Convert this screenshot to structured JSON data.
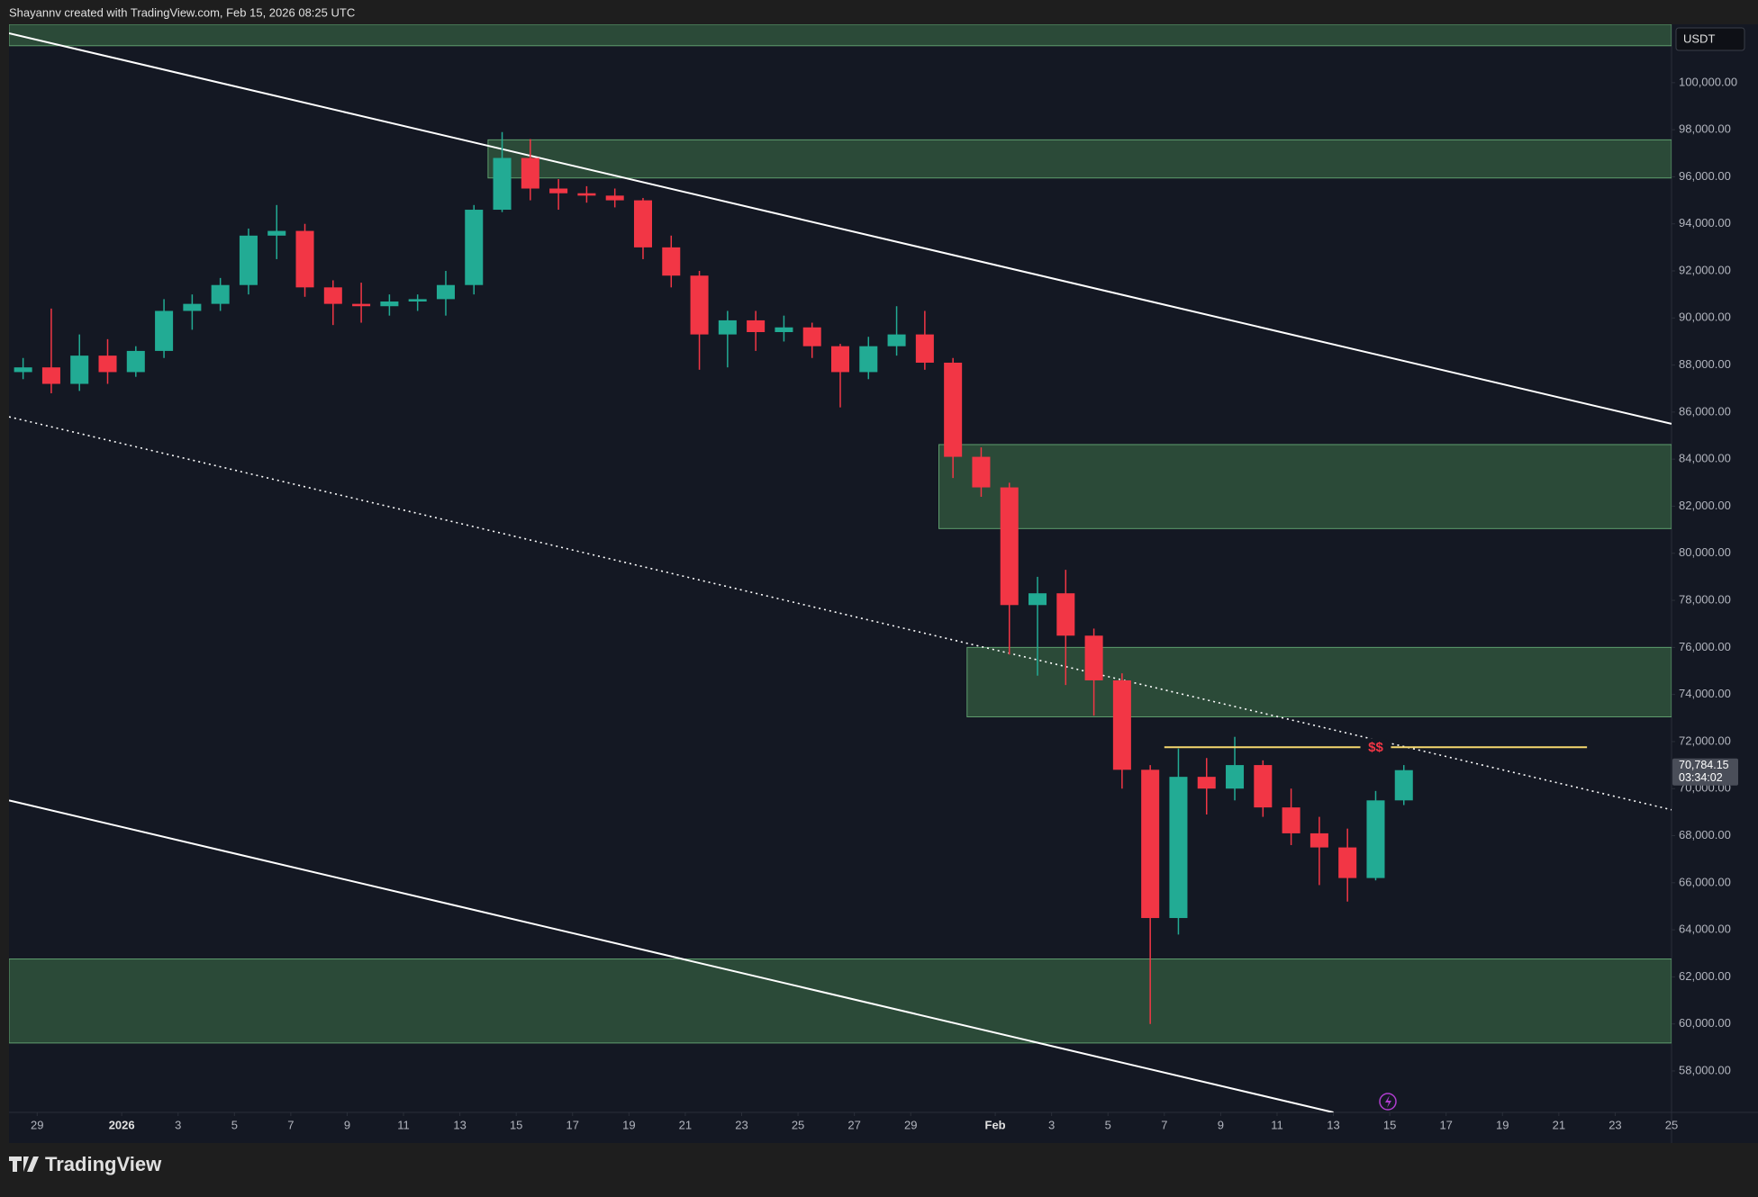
{
  "chart_data": {
    "type": "candlestick",
    "title": "Shayannv created with TradingView.com, Feb 15, 2026 08:25 UTC",
    "currency": "USDT",
    "watermark": "TradingView",
    "up_color": "#22ab94",
    "down_color": "#f23645",
    "x": [
      "2025-12-28",
      "2025-12-29",
      "2025-12-30",
      "2025-12-31",
      "2026-01-01",
      "2026-01-02",
      "2026-01-03",
      "2026-01-04",
      "2026-01-05",
      "2026-01-06",
      "2026-01-07",
      "2026-01-08",
      "2026-01-09",
      "2026-01-10",
      "2026-01-11",
      "2026-01-12",
      "2026-01-13",
      "2026-01-14",
      "2026-01-15",
      "2026-01-16",
      "2026-01-17",
      "2026-01-18",
      "2026-01-19",
      "2026-01-20",
      "2026-01-21",
      "2026-01-22",
      "2026-01-23",
      "2026-01-24",
      "2026-01-25",
      "2026-01-26",
      "2026-01-27",
      "2026-01-28",
      "2026-01-29",
      "2026-01-30",
      "2026-01-31",
      "2026-02-01",
      "2026-02-02",
      "2026-02-03",
      "2026-02-04",
      "2026-02-05",
      "2026-02-06",
      "2026-02-07",
      "2026-02-08",
      "2026-02-09",
      "2026-02-10",
      "2026-02-11",
      "2026-02-12",
      "2026-02-13",
      "2026-02-14",
      "2026-02-15"
    ],
    "open": [
      87700,
      87900,
      87200,
      88400,
      87700,
      88600,
      90300,
      90600,
      91400,
      93500,
      93700,
      91300,
      90600,
      90500,
      90700,
      90800,
      91400,
      94600,
      96800,
      95500,
      95300,
      95200,
      95000,
      93000,
      91800,
      89300,
      89900,
      89400,
      89600,
      88800,
      87700,
      88800,
      89300,
      88100,
      84100,
      82800,
      77800,
      78300,
      76500,
      74600,
      70800,
      64500,
      70500,
      70000,
      71000,
      69200,
      68100,
      67500,
      66200,
      69500
    ],
    "high": [
      88300,
      90400,
      89300,
      89100,
      88800,
      90800,
      91000,
      91700,
      93800,
      94800,
      94000,
      91600,
      91500,
      91000,
      91000,
      92000,
      94800,
      97900,
      97600,
      95900,
      95600,
      95500,
      95100,
      93500,
      92000,
      90300,
      90300,
      90100,
      89800,
      88900,
      89200,
      90500,
      90300,
      88300,
      84500,
      83000,
      79000,
      79300,
      76800,
      74900,
      71000,
      71700,
      71300,
      72200,
      71200,
      70000,
      68800,
      68300,
      69900,
      71000
    ],
    "low": [
      87400,
      86800,
      86900,
      87200,
      87500,
      88300,
      89500,
      90300,
      91000,
      92500,
      90900,
      89700,
      89800,
      90100,
      90300,
      90100,
      91000,
      94500,
      95000,
      94600,
      94900,
      94700,
      92500,
      91300,
      87800,
      87900,
      88600,
      89000,
      88300,
      86200,
      87400,
      88400,
      87800,
      83200,
      82400,
      75700,
      74800,
      74400,
      73100,
      70000,
      60000,
      63800,
      68900,
      69500,
      68800,
      67600,
      65900,
      65200,
      66100,
      69300
    ],
    "close": [
      87900,
      87200,
      88400,
      87700,
      88600,
      90300,
      90600,
      91400,
      93500,
      93700,
      91300,
      90600,
      90500,
      90700,
      90800,
      91400,
      94600,
      96800,
      95500,
      95300,
      95200,
      95000,
      93000,
      91800,
      89300,
      89900,
      89400,
      89600,
      88800,
      87700,
      88800,
      89300,
      88100,
      84100,
      82800,
      77800,
      78300,
      76500,
      74600,
      70800,
      64500,
      70500,
      70000,
      71000,
      69200,
      68100,
      67500,
      66200,
      69500,
      70784.15
    ],
    "last_price": {
      "value": 70784.15,
      "label": "70,784.15"
    },
    "countdown": "03:34:02",
    "xlim": [
      "2025-12-28",
      "2026-02-25"
    ],
    "xticks": [
      {
        "value": "2025-12-29",
        "label": "29"
      },
      {
        "value": "2026-01-01",
        "label": "2026"
      },
      {
        "value": "2026-01-03",
        "label": "3"
      },
      {
        "value": "2026-01-05",
        "label": "5"
      },
      {
        "value": "2026-01-07",
        "label": "7"
      },
      {
        "value": "2026-01-09",
        "label": "9"
      },
      {
        "value": "2026-01-11",
        "label": "11"
      },
      {
        "value": "2026-01-13",
        "label": "13"
      },
      {
        "value": "2026-01-15",
        "label": "15"
      },
      {
        "value": "2026-01-17",
        "label": "17"
      },
      {
        "value": "2026-01-19",
        "label": "19"
      },
      {
        "value": "2026-01-21",
        "label": "21"
      },
      {
        "value": "2026-01-23",
        "label": "23"
      },
      {
        "value": "2026-01-25",
        "label": "25"
      },
      {
        "value": "2026-01-27",
        "label": "27"
      },
      {
        "value": "2026-01-29",
        "label": "29"
      },
      {
        "value": "2026-02-01",
        "label": "Feb"
      },
      {
        "value": "2026-02-03",
        "label": "3"
      },
      {
        "value": "2026-02-05",
        "label": "5"
      },
      {
        "value": "2026-02-07",
        "label": "7"
      },
      {
        "value": "2026-02-09",
        "label": "9"
      },
      {
        "value": "2026-02-11",
        "label": "11"
      },
      {
        "value": "2026-02-13",
        "label": "13"
      },
      {
        "value": "2026-02-15",
        "label": "15"
      },
      {
        "value": "2026-02-17",
        "label": "17"
      },
      {
        "value": "2026-02-19",
        "label": "19"
      },
      {
        "value": "2026-02-21",
        "label": "21"
      },
      {
        "value": "2026-02-23",
        "label": "23"
      },
      {
        "value": "2026-02-25",
        "label": "25"
      }
    ],
    "ylim": [
      56240,
      102480
    ],
    "yticks": [
      {
        "value": 58000,
        "label": "58,000.00"
      },
      {
        "value": 60000,
        "label": "60,000.00"
      },
      {
        "value": 62000,
        "label": "62,000.00"
      },
      {
        "value": 64000,
        "label": "64,000.00"
      },
      {
        "value": 66000,
        "label": "66,000.00"
      },
      {
        "value": 68000,
        "label": "68,000.00"
      },
      {
        "value": 70000,
        "label": "70,000.00"
      },
      {
        "value": 72000,
        "label": "72,000.00"
      },
      {
        "value": 74000,
        "label": "74,000.00"
      },
      {
        "value": 76000,
        "label": "76,000.00"
      },
      {
        "value": 78000,
        "label": "78,000.00"
      },
      {
        "value": 80000,
        "label": "80,000.00"
      },
      {
        "value": 82000,
        "label": "82,000.00"
      },
      {
        "value": 84000,
        "label": "84,000.00"
      },
      {
        "value": 86000,
        "label": "86,000.00"
      },
      {
        "value": 88000,
        "label": "88,000.00"
      },
      {
        "value": 90000,
        "label": "90,000.00"
      },
      {
        "value": 92000,
        "label": "92,000.00"
      },
      {
        "value": 94000,
        "label": "94,000.00"
      },
      {
        "value": 96000,
        "label": "96,000.00"
      },
      {
        "value": 98000,
        "label": "98,000.00"
      },
      {
        "value": 100000,
        "label": "100,000.00"
      }
    ],
    "zones": [
      {
        "from": "2025-12-28",
        "top": 102480,
        "bottom": 101570
      },
      {
        "from": "2026-01-14",
        "top": 97570,
        "bottom": 95950
      },
      {
        "from": "2026-01-30",
        "top": 84620,
        "bottom": 81050
      },
      {
        "from": "2026-01-31",
        "top": 76000,
        "bottom": 73050
      },
      {
        "from": "2025-12-28",
        "top": 62760,
        "bottom": 59190
      }
    ],
    "zone_color": "#2b4a38",
    "trendlines": [
      {
        "x": [
          "2025-12-28",
          "2026-02-25"
        ],
        "y": [
          102100,
          85500
        ],
        "dashed": false
      },
      {
        "x": [
          "2025-12-28",
          "2026-02-13"
        ],
        "y": [
          69500,
          56240
        ],
        "dashed": false
      },
      {
        "x": [
          "2025-12-28",
          "2026-02-25"
        ],
        "y": [
          85800,
          69100
        ],
        "dashed": true
      }
    ],
    "liquidity_line": {
      "x": [
        "2026-02-07",
        "2026-02-22"
      ],
      "y": 71760,
      "label": "$$",
      "color": "#f5d76e"
    }
  }
}
